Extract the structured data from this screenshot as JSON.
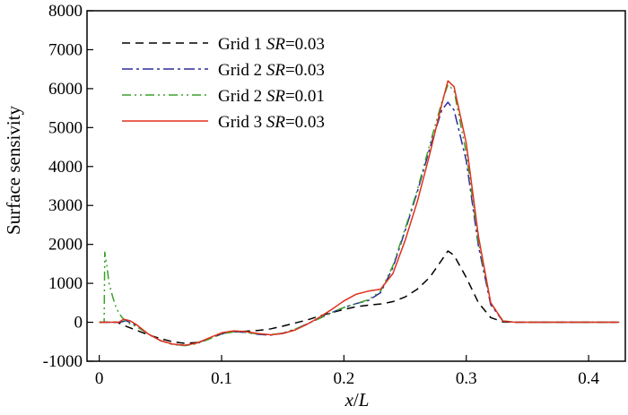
{
  "chart_data": {
    "type": "line",
    "title": "",
    "xlabel_italic": "x",
    "xlabel_sep": "/",
    "xlabel_italic2": "L",
    "ylabel": "Surface sensivity",
    "xlim": [
      -0.01,
      0.43
    ],
    "ylim": [
      -1000,
      8000
    ],
    "xticks": [
      0,
      0.1,
      0.2,
      0.3,
      0.4
    ],
    "xtick_labels": [
      "0",
      "0.1",
      "0.2",
      "0.3",
      "0.4"
    ],
    "yticks": [
      -1000,
      0,
      1000,
      2000,
      3000,
      4000,
      5000,
      6000,
      7000,
      8000
    ],
    "ytick_labels": [
      "-1000",
      "0",
      "1000",
      "2000",
      "3000",
      "4000",
      "5000",
      "6000",
      "7000",
      "8000"
    ],
    "legend_position": "top-left",
    "series": [
      {
        "name": "Grid 1",
        "legend_prefix": "Grid 1 ",
        "legend_italic": "SR",
        "legend_suffix": "=0.03",
        "color": "#000000",
        "dash": "9,6",
        "x": [
          0,
          0.015,
          0.02,
          0.03,
          0.04,
          0.05,
          0.06,
          0.07,
          0.08,
          0.09,
          0.1,
          0.11,
          0.12,
          0.13,
          0.14,
          0.15,
          0.16,
          0.17,
          0.18,
          0.19,
          0.2,
          0.21,
          0.22,
          0.23,
          0.24,
          0.25,
          0.26,
          0.27,
          0.28,
          0.285,
          0.29,
          0.3,
          0.31,
          0.32,
          0.33,
          0.34,
          0.36,
          0.4,
          0.425
        ],
        "y": [
          0,
          0,
          -80,
          -200,
          -320,
          -420,
          -500,
          -540,
          -520,
          -420,
          -300,
          -240,
          -230,
          -210,
          -170,
          -100,
          -20,
          60,
          160,
          250,
          330,
          400,
          440,
          470,
          530,
          650,
          850,
          1150,
          1600,
          1830,
          1720,
          1150,
          500,
          120,
          10,
          0,
          0,
          0,
          0
        ]
      },
      {
        "name": "Grid 2 SR=0.03",
        "legend_prefix": "Grid 2 ",
        "legend_italic": "SR",
        "legend_suffix": "=0.03",
        "color": "#2b2b9c",
        "dash": "12,4,3,4",
        "x": [
          0,
          0.017,
          0.022,
          0.03,
          0.04,
          0.05,
          0.06,
          0.07,
          0.08,
          0.09,
          0.1,
          0.11,
          0.12,
          0.13,
          0.14,
          0.15,
          0.16,
          0.17,
          0.18,
          0.19,
          0.2,
          0.21,
          0.22,
          0.23,
          0.24,
          0.25,
          0.26,
          0.27,
          0.28,
          0.285,
          0.29,
          0.3,
          0.31,
          0.32,
          0.33,
          0.34,
          0.36,
          0.4,
          0.425
        ],
        "y": [
          0,
          0,
          40,
          -80,
          -300,
          -470,
          -570,
          -590,
          -530,
          -420,
          -290,
          -240,
          -260,
          -310,
          -330,
          -280,
          -180,
          -40,
          100,
          250,
          380,
          480,
          560,
          760,
          1400,
          2350,
          3350,
          4450,
          5450,
          5650,
          5450,
          4150,
          1950,
          450,
          30,
          0,
          0,
          0,
          0
        ]
      },
      {
        "name": "Grid 2 SR=0.01",
        "legend_prefix": "Grid 2 ",
        "legend_italic": "SR",
        "legend_suffix": "=0.01",
        "color": "#3ca02c",
        "dash": "10,4,2,4,2,4",
        "x": [
          0,
          0.004,
          0.0045,
          0.006,
          0.008,
          0.011,
          0.014,
          0.018,
          0.022,
          0.03,
          0.04,
          0.05,
          0.06,
          0.07,
          0.08,
          0.09,
          0.1,
          0.11,
          0.12,
          0.13,
          0.14,
          0.15,
          0.16,
          0.17,
          0.18,
          0.19,
          0.2,
          0.21,
          0.22,
          0.23,
          0.24,
          0.25,
          0.26,
          0.27,
          0.28,
          0.285,
          0.29,
          0.3,
          0.31,
          0.32,
          0.33,
          0.34,
          0.36,
          0.4,
          0.425
        ],
        "y": [
          0,
          0,
          1800,
          1500,
          1000,
          650,
          350,
          150,
          0,
          -100,
          -300,
          -470,
          -570,
          -600,
          -550,
          -430,
          -300,
          -240,
          -260,
          -300,
          -320,
          -280,
          -180,
          -40,
          100,
          250,
          380,
          480,
          580,
          800,
          1450,
          2400,
          3400,
          4550,
          5650,
          6100,
          5950,
          4350,
          2050,
          500,
          40,
          0,
          0,
          0,
          0
        ]
      },
      {
        "name": "Grid 3",
        "legend_prefix": "Grid 3 ",
        "legend_italic": "SR",
        "legend_suffix": "=0.03",
        "color": "#e0311c",
        "dash": "",
        "x": [
          0,
          0.016,
          0.02,
          0.025,
          0.03,
          0.04,
          0.05,
          0.06,
          0.07,
          0.08,
          0.09,
          0.1,
          0.11,
          0.12,
          0.13,
          0.14,
          0.15,
          0.16,
          0.17,
          0.18,
          0.19,
          0.2,
          0.21,
          0.22,
          0.23,
          0.24,
          0.25,
          0.26,
          0.27,
          0.28,
          0.285,
          0.29,
          0.3,
          0.31,
          0.32,
          0.33,
          0.34,
          0.36,
          0.4,
          0.425
        ],
        "y": [
          0,
          0,
          80,
          40,
          -50,
          -300,
          -470,
          -560,
          -590,
          -530,
          -400,
          -270,
          -220,
          -240,
          -290,
          -320,
          -290,
          -200,
          -50,
          130,
          330,
          550,
          720,
          800,
          850,
          1250,
          2100,
          3100,
          4300,
          5600,
          6200,
          6050,
          4600,
          2200,
          500,
          30,
          0,
          0,
          0,
          0
        ]
      }
    ]
  }
}
